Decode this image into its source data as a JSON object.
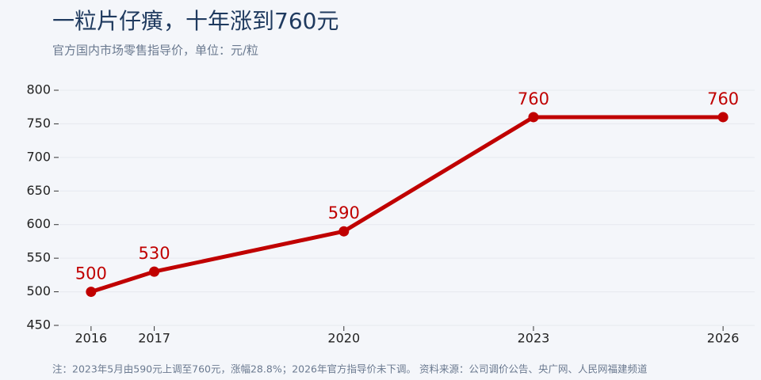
{
  "chart_data": {
    "type": "line",
    "title": "一粒片仔癀，十年涨到760元",
    "subtitle": "官方国内市场零售指导价，单位：元/粒",
    "note": "注：2023年5月由590元上调至760元，涨幅28.8%；2026年官方指导价未下调。  资料来源：公司调价公告、央广网、人民网福建频道",
    "x": [
      2016,
      2017,
      2020,
      2023,
      2026
    ],
    "series": [
      {
        "name": "零售指导价",
        "color": "#c00000",
        "values": [
          500,
          530,
          590,
          760,
          760
        ]
      }
    ],
    "xlim": [
      2015.5,
      2026.5
    ],
    "xticks": [
      2016,
      2017,
      2020,
      2023,
      2026
    ],
    "ylim": [
      450,
      800
    ],
    "yticks": [
      450,
      500,
      550,
      600,
      650,
      700,
      750,
      800
    ],
    "grid": true
  }
}
